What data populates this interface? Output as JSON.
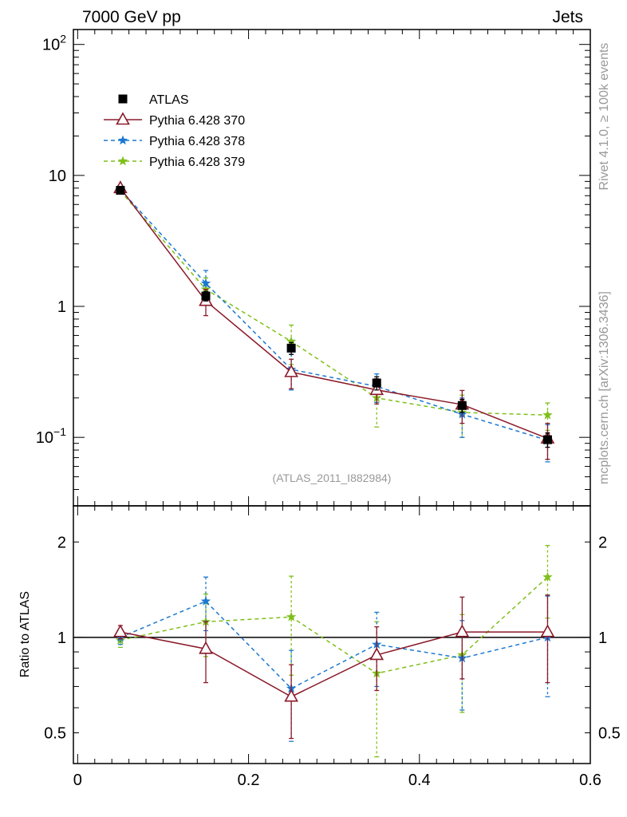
{
  "header": {
    "left": "7000 GeV pp",
    "right": "Jets"
  },
  "side_labels": {
    "rivet": "Rivet 4.1.0, ≥ 100k events",
    "mcplots": "mcplots.cern.ch [arXiv:1306.3436]"
  },
  "analysis_id": "(ATLAS_2011_I882984)",
  "colors": {
    "atlas": "#000000",
    "p370": "#8b1a2a",
    "p378": "#1b78d0",
    "p379": "#7fbf1a",
    "refline": "#000000"
  },
  "chart_data": [
    {
      "name": "main",
      "type": "line",
      "yscale": "log",
      "xlim": [
        -0.005,
        0.6
      ],
      "ylim": [
        0.03,
        130
      ],
      "xticks": [
        0,
        0.2,
        0.4,
        0.6
      ],
      "yticks": [
        {
          "value": 0.1,
          "base": "10",
          "exp": "−1"
        },
        {
          "value": 1,
          "label": "1"
        },
        {
          "value": 10,
          "label": "10"
        },
        {
          "value": 100,
          "base": "10",
          "exp": "2"
        }
      ],
      "x": [
        0.05,
        0.15,
        0.25,
        0.35,
        0.45,
        0.55
      ],
      "series": [
        {
          "name": "ATLAS",
          "marker": "square",
          "color": "#000000",
          "line": "none",
          "values": [
            7.7,
            1.2,
            0.48,
            0.26,
            0.175,
            0.096
          ],
          "err": [
            0.25,
            0.1,
            0.05,
            0.03,
            0.02,
            0.012
          ]
        },
        {
          "name": "Pythia 6.428 370",
          "marker": "triangle-open",
          "color": "#8b1a2a",
          "line": "solid",
          "values": [
            8.0,
            1.1,
            0.315,
            0.23,
            0.178,
            0.098
          ],
          "err": [
            0.3,
            0.25,
            0.08,
            0.05,
            0.05,
            0.03
          ]
        },
        {
          "name": "Pythia 6.428 378",
          "marker": "star",
          "color": "#1b78d0",
          "line": "dashed",
          "values": [
            7.8,
            1.5,
            0.33,
            0.245,
            0.15,
            0.095
          ],
          "err": [
            0.3,
            0.38,
            0.1,
            0.06,
            0.05,
            0.03
          ]
        },
        {
          "name": "Pythia 6.428 379",
          "marker": "star",
          "color": "#7fbf1a",
          "line": "dashed",
          "values": [
            7.6,
            1.35,
            0.54,
            0.2,
            0.155,
            0.148
          ],
          "err": [
            0.3,
            0.3,
            0.18,
            0.08,
            0.055,
            0.035
          ]
        }
      ]
    },
    {
      "name": "ratio",
      "type": "line",
      "yscale": "log",
      "ylabel": "Ratio to ATLAS",
      "xlim": [
        -0.005,
        0.6
      ],
      "ylim": [
        0.4,
        2.6
      ],
      "xticks": [
        0,
        0.2,
        0.4,
        0.6
      ],
      "yticks": [
        {
          "value": 0.5,
          "label": "0.5"
        },
        {
          "value": 1,
          "label": "1"
        },
        {
          "value": 2,
          "label": "2"
        }
      ],
      "x": [
        0.05,
        0.15,
        0.25,
        0.35,
        0.45,
        0.55
      ],
      "reference": 1,
      "series": [
        {
          "name": "Pythia 6.428 370",
          "marker": "triangle-open",
          "color": "#8b1a2a",
          "line": "solid",
          "values": [
            1.04,
            0.92,
            0.65,
            0.88,
            1.04,
            1.04
          ],
          "err": [
            0.05,
            0.2,
            0.17,
            0.2,
            0.3,
            0.32
          ]
        },
        {
          "name": "Pythia 6.428 378",
          "marker": "star",
          "color": "#1b78d0",
          "line": "dashed",
          "values": [
            1.0,
            1.3,
            0.69,
            0.95,
            0.86,
            1.0
          ],
          "err": [
            0.05,
            0.25,
            0.22,
            0.25,
            0.27,
            0.35
          ]
        },
        {
          "name": "Pythia 6.428 379",
          "marker": "star",
          "color": "#7fbf1a",
          "line": "dashed",
          "values": [
            0.98,
            1.12,
            1.16,
            0.77,
            0.88,
            1.55
          ],
          "err": [
            0.05,
            0.25,
            0.4,
            0.35,
            0.3,
            0.4
          ]
        }
      ]
    }
  ]
}
